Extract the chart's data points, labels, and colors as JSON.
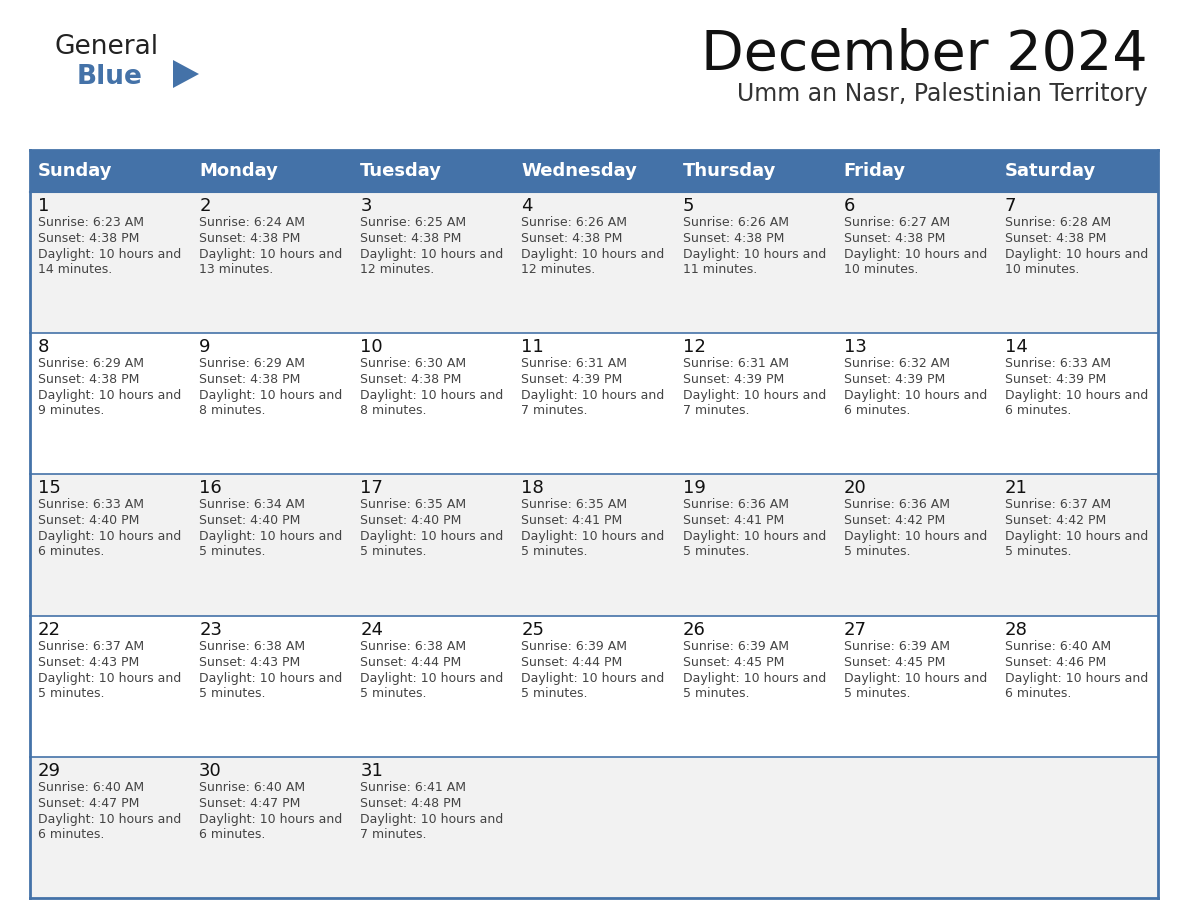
{
  "title": "December 2024",
  "subtitle": "Umm an Nasr, Palestinian Territory",
  "days_of_week": [
    "Sunday",
    "Monday",
    "Tuesday",
    "Wednesday",
    "Thursday",
    "Friday",
    "Saturday"
  ],
  "header_bg": "#4472a8",
  "header_text": "#ffffff",
  "cell_bg_odd": "#f2f2f2",
  "cell_bg_even": "#ffffff",
  "border_color": "#4472a8",
  "day_num_color": "#000000",
  "day_text_color": "#555555",
  "calendar_data": [
    [
      {
        "day": 1,
        "sunrise": "6:23 AM",
        "sunset": "4:38 PM",
        "daylight": "10 hours and 14 minutes"
      },
      {
        "day": 2,
        "sunrise": "6:24 AM",
        "sunset": "4:38 PM",
        "daylight": "10 hours and 13 minutes"
      },
      {
        "day": 3,
        "sunrise": "6:25 AM",
        "sunset": "4:38 PM",
        "daylight": "10 hours and 12 minutes"
      },
      {
        "day": 4,
        "sunrise": "6:26 AM",
        "sunset": "4:38 PM",
        "daylight": "10 hours and 12 minutes"
      },
      {
        "day": 5,
        "sunrise": "6:26 AM",
        "sunset": "4:38 PM",
        "daylight": "10 hours and 11 minutes"
      },
      {
        "day": 6,
        "sunrise": "6:27 AM",
        "sunset": "4:38 PM",
        "daylight": "10 hours and 10 minutes"
      },
      {
        "day": 7,
        "sunrise": "6:28 AM",
        "sunset": "4:38 PM",
        "daylight": "10 hours and 10 minutes"
      }
    ],
    [
      {
        "day": 8,
        "sunrise": "6:29 AM",
        "sunset": "4:38 PM",
        "daylight": "10 hours and 9 minutes"
      },
      {
        "day": 9,
        "sunrise": "6:29 AM",
        "sunset": "4:38 PM",
        "daylight": "10 hours and 8 minutes"
      },
      {
        "day": 10,
        "sunrise": "6:30 AM",
        "sunset": "4:38 PM",
        "daylight": "10 hours and 8 minutes"
      },
      {
        "day": 11,
        "sunrise": "6:31 AM",
        "sunset": "4:39 PM",
        "daylight": "10 hours and 7 minutes"
      },
      {
        "day": 12,
        "sunrise": "6:31 AM",
        "sunset": "4:39 PM",
        "daylight": "10 hours and 7 minutes"
      },
      {
        "day": 13,
        "sunrise": "6:32 AM",
        "sunset": "4:39 PM",
        "daylight": "10 hours and 6 minutes"
      },
      {
        "day": 14,
        "sunrise": "6:33 AM",
        "sunset": "4:39 PM",
        "daylight": "10 hours and 6 minutes"
      }
    ],
    [
      {
        "day": 15,
        "sunrise": "6:33 AM",
        "sunset": "4:40 PM",
        "daylight": "10 hours and 6 minutes"
      },
      {
        "day": 16,
        "sunrise": "6:34 AM",
        "sunset": "4:40 PM",
        "daylight": "10 hours and 5 minutes"
      },
      {
        "day": 17,
        "sunrise": "6:35 AM",
        "sunset": "4:40 PM",
        "daylight": "10 hours and 5 minutes"
      },
      {
        "day": 18,
        "sunrise": "6:35 AM",
        "sunset": "4:41 PM",
        "daylight": "10 hours and 5 minutes"
      },
      {
        "day": 19,
        "sunrise": "6:36 AM",
        "sunset": "4:41 PM",
        "daylight": "10 hours and 5 minutes"
      },
      {
        "day": 20,
        "sunrise": "6:36 AM",
        "sunset": "4:42 PM",
        "daylight": "10 hours and 5 minutes"
      },
      {
        "day": 21,
        "sunrise": "6:37 AM",
        "sunset": "4:42 PM",
        "daylight": "10 hours and 5 minutes"
      }
    ],
    [
      {
        "day": 22,
        "sunrise": "6:37 AM",
        "sunset": "4:43 PM",
        "daylight": "10 hours and 5 minutes"
      },
      {
        "day": 23,
        "sunrise": "6:38 AM",
        "sunset": "4:43 PM",
        "daylight": "10 hours and 5 minutes"
      },
      {
        "day": 24,
        "sunrise": "6:38 AM",
        "sunset": "4:44 PM",
        "daylight": "10 hours and 5 minutes"
      },
      {
        "day": 25,
        "sunrise": "6:39 AM",
        "sunset": "4:44 PM",
        "daylight": "10 hours and 5 minutes"
      },
      {
        "day": 26,
        "sunrise": "6:39 AM",
        "sunset": "4:45 PM",
        "daylight": "10 hours and 5 minutes"
      },
      {
        "day": 27,
        "sunrise": "6:39 AM",
        "sunset": "4:45 PM",
        "daylight": "10 hours and 5 minutes"
      },
      {
        "day": 28,
        "sunrise": "6:40 AM",
        "sunset": "4:46 PM",
        "daylight": "10 hours and 6 minutes"
      }
    ],
    [
      {
        "day": 29,
        "sunrise": "6:40 AM",
        "sunset": "4:47 PM",
        "daylight": "10 hours and 6 minutes"
      },
      {
        "day": 30,
        "sunrise": "6:40 AM",
        "sunset": "4:47 PM",
        "daylight": "10 hours and 6 minutes"
      },
      {
        "day": 31,
        "sunrise": "6:41 AM",
        "sunset": "4:48 PM",
        "daylight": "10 hours and 7 minutes"
      },
      null,
      null,
      null,
      null
    ]
  ],
  "logo_text_general": "General",
  "logo_text_blue": "Blue",
  "logo_triangle_color": "#4472a8"
}
